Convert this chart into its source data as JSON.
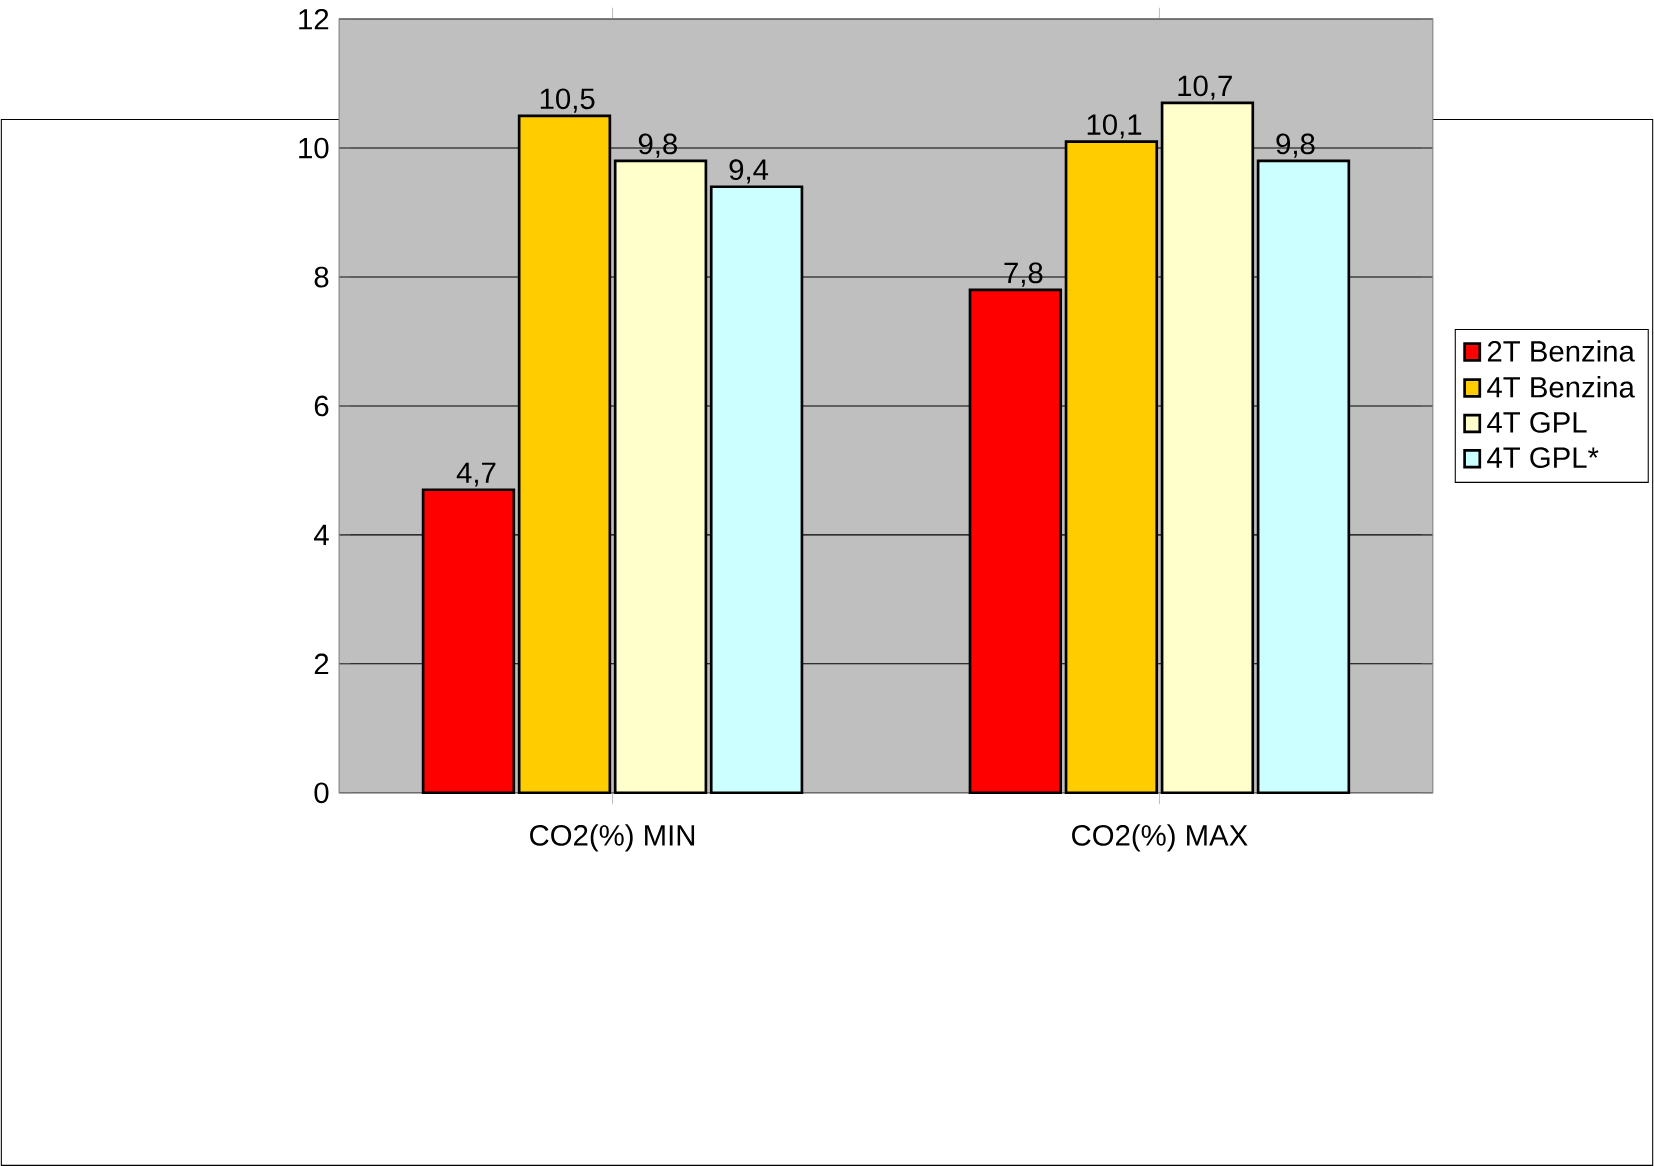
{
  "chart_data": {
    "type": "bar",
    "categories": [
      "CO2(%) MIN",
      "CO2(%) MAX"
    ],
    "series": [
      {
        "name": "2T Benzina",
        "color": "#ff0000",
        "values": [
          4.7,
          7.8
        ],
        "value_labels": [
          "4,7",
          "7,8"
        ]
      },
      {
        "name": "4T Benzina",
        "color": "#ffcc00",
        "values": [
          10.5,
          10.1
        ],
        "value_labels": [
          "10,5",
          "10,1"
        ]
      },
      {
        "name": "4T GPL",
        "color": "#ffffcc",
        "values": [
          9.8,
          10.7
        ],
        "value_labels": [
          "9,8",
          "10,7"
        ]
      },
      {
        "name": "4T GPL*",
        "color": "#ccffff",
        "values": [
          9.4,
          9.8
        ],
        "value_labels": [
          "9,4",
          "9,8"
        ]
      }
    ],
    "ylim": [
      0,
      12
    ],
    "yticks": [
      0,
      2,
      4,
      6,
      8,
      10,
      12
    ],
    "grid": "y",
    "legend": "right"
  }
}
